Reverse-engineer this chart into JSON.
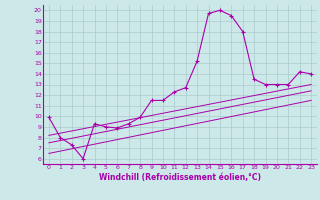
{
  "xlabel": "Windchill (Refroidissement éolien,°C)",
  "bg_color": "#cce8e8",
  "line_color": "#aa00aa",
  "grid_color": "#aacccc",
  "xlim": [
    -0.5,
    23.5
  ],
  "ylim": [
    5.5,
    20.5
  ],
  "xticks": [
    0,
    1,
    2,
    3,
    4,
    5,
    6,
    7,
    8,
    9,
    10,
    11,
    12,
    13,
    14,
    15,
    16,
    17,
    18,
    19,
    20,
    21,
    22,
    23
  ],
  "yticks": [
    6,
    7,
    8,
    9,
    10,
    11,
    12,
    13,
    14,
    15,
    16,
    17,
    18,
    19,
    20
  ],
  "main_series": [
    [
      0,
      9.9
    ],
    [
      1,
      8.0
    ],
    [
      2,
      7.3
    ],
    [
      3,
      6.0
    ],
    [
      4,
      9.3
    ],
    [
      5,
      9.0
    ],
    [
      6,
      8.9
    ],
    [
      7,
      9.3
    ],
    [
      8,
      9.9
    ],
    [
      9,
      11.5
    ],
    [
      10,
      11.5
    ],
    [
      11,
      12.3
    ],
    [
      12,
      12.7
    ],
    [
      13,
      15.2
    ],
    [
      14,
      19.7
    ],
    [
      15,
      20.0
    ],
    [
      16,
      19.5
    ],
    [
      17,
      18.0
    ],
    [
      18,
      13.5
    ],
    [
      19,
      13.0
    ],
    [
      20,
      13.0
    ],
    [
      21,
      13.0
    ],
    [
      22,
      14.2
    ],
    [
      23,
      14.0
    ]
  ],
  "reg_line1": [
    [
      0,
      8.2
    ],
    [
      23,
      13.0
    ]
  ],
  "reg_line2": [
    [
      0,
      7.5
    ],
    [
      23,
      12.4
    ]
  ],
  "reg_line3": [
    [
      0,
      6.5
    ],
    [
      23,
      11.5
    ]
  ]
}
